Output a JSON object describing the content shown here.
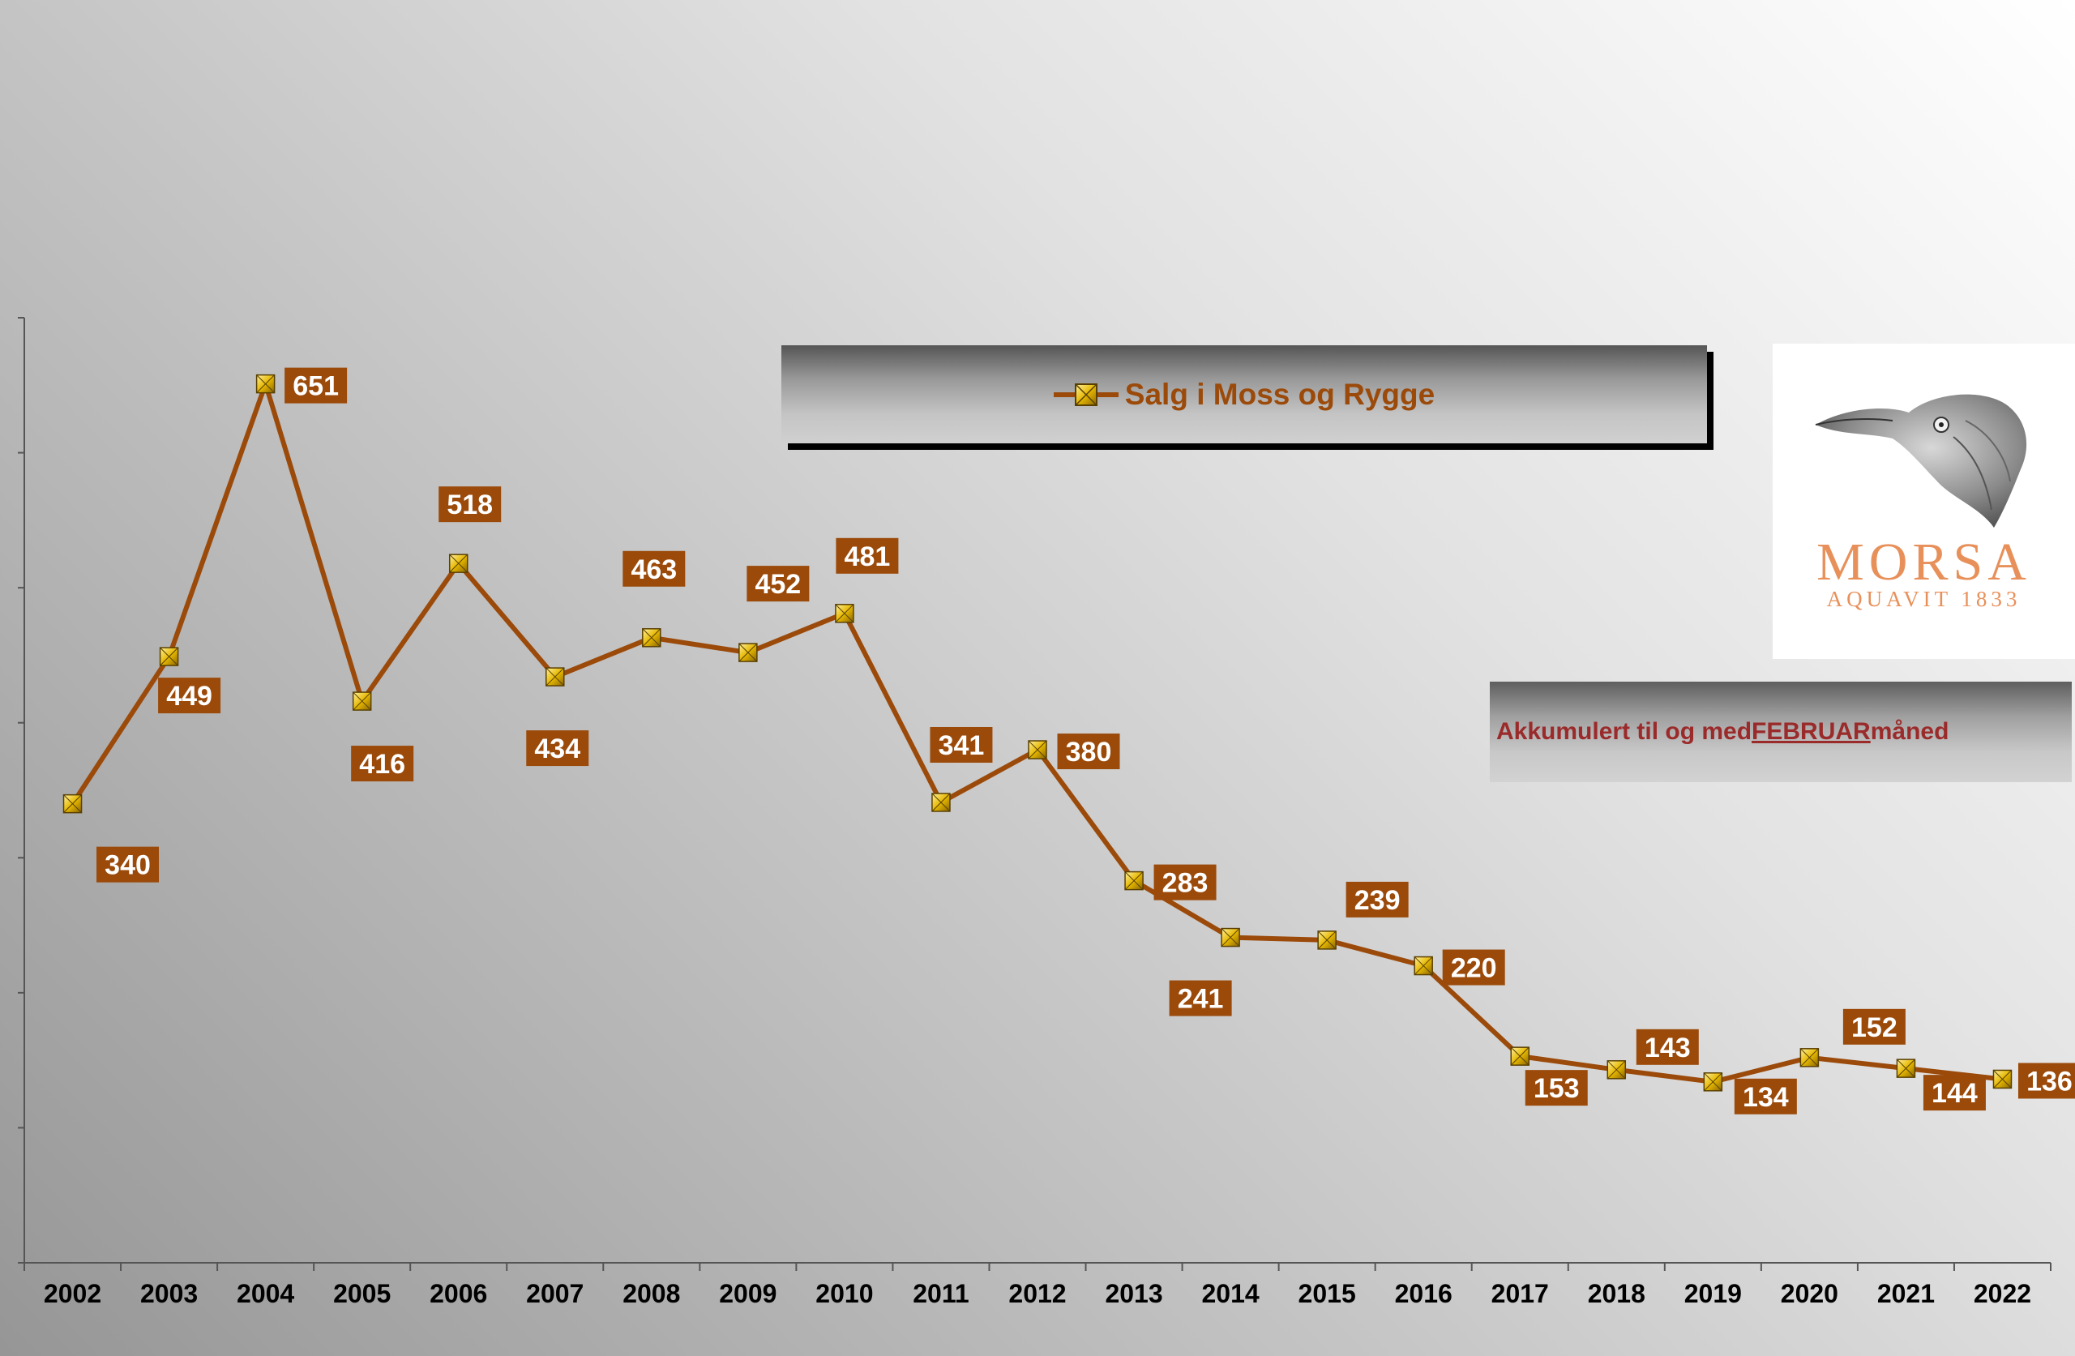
{
  "chart_data": {
    "type": "line",
    "categories": [
      "2002",
      "2003",
      "2004",
      "2005",
      "2006",
      "2007",
      "2008",
      "2009",
      "2010",
      "2011",
      "2012",
      "2013",
      "2014",
      "2015",
      "2016",
      "2017",
      "2018",
      "2019",
      "2020",
      "2021",
      "2022"
    ],
    "series": [
      {
        "name": "Salg i Moss og Rygge",
        "values": [
          340,
          449,
          651,
          416,
          518,
          434,
          463,
          452,
          481,
          341,
          380,
          283,
          241,
          239,
          220,
          153,
          143,
          134,
          152,
          144,
          136
        ]
      }
    ],
    "ylim": [
      0,
      700
    ],
    "yticks_labeled": false,
    "grid": false,
    "legend_position": "top-center",
    "title": "",
    "xlabel": "",
    "ylabel": ""
  },
  "legend": {
    "label": "Salg i Moss og Rygge"
  },
  "note": {
    "prefix": "Akkumulert til og med ",
    "month": "FEBRUAR ",
    "suffix": "måned"
  },
  "logo": {
    "name": "MORSA",
    "subtitle": "AQUAVIT 1833",
    "image": "raven-head-icon"
  },
  "colors": {
    "line": "#9b4a0a",
    "label_bg": "#9b4a0a",
    "label_text": "#ffffff",
    "marker_fill": "#e6b800",
    "logo_text": "#e8905a",
    "note_text": "#9b2a2a"
  }
}
